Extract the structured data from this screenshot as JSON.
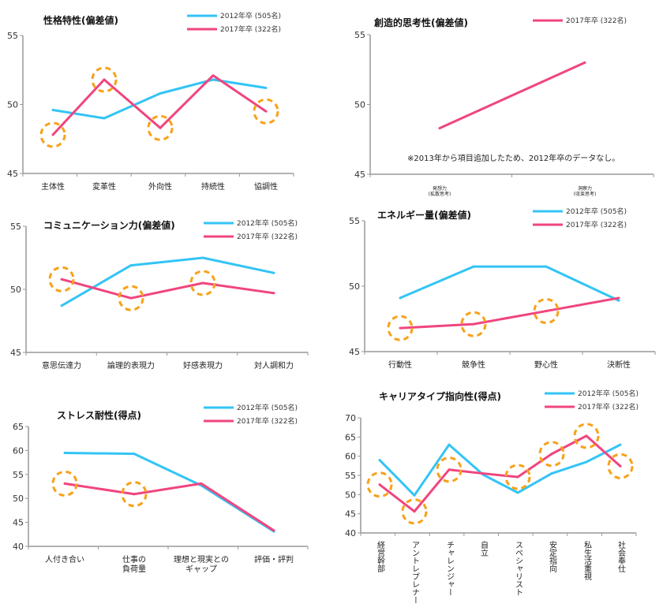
{
  "colors": {
    "s2012": "#33c4f5",
    "s2017": "#f0457f",
    "highlight": "#f7a21b",
    "axis": "#999999"
  },
  "legend": {
    "s2012": "2012年卒 (505名)",
    "s2017": "2017年卒 (322名)"
  },
  "chart_data": [
    {
      "type": "line",
      "title": "性格特性(偏差値)",
      "categories": [
        "主体性",
        "変革性",
        "外向性",
        "持続性",
        "協調性"
      ],
      "ylim": [
        45,
        55
      ],
      "yticks": [
        45,
        50,
        55
      ],
      "series": [
        {
          "name": "2012年卒 (505名)",
          "values": [
            49.6,
            49.0,
            50.8,
            51.8,
            51.2
          ]
        },
        {
          "name": "2017年卒 (322名)",
          "values": [
            47.8,
            51.8,
            48.3,
            52.1,
            49.5
          ],
          "highlighted": [
            0,
            1,
            2,
            4
          ]
        }
      ]
    },
    {
      "type": "line",
      "title": "創造的思考性(偏差値)",
      "categories": [
        "発想力\n(拡散思考)",
        "洞察力\n(収束思考)"
      ],
      "ylim": [
        45,
        55
      ],
      "yticks": [
        45,
        50,
        55
      ],
      "note": "※2013年から項目追加したため、2012年卒のデータなし。",
      "series": [
        {
          "name": "2017年卒 (322名)",
          "values": [
            48.3,
            53.0
          ],
          "highlighted": []
        }
      ]
    },
    {
      "type": "line",
      "title": "コミュニケーション力(偏差値)",
      "categories": [
        "意思伝達力",
        "論理的表現力",
        "好感表現力",
        "対人調和力"
      ],
      "ylim": [
        45,
        55
      ],
      "yticks": [
        45,
        50,
        55
      ],
      "series": [
        {
          "name": "2012年卒 (505名)",
          "values": [
            48.7,
            51.9,
            52.5,
            51.3
          ]
        },
        {
          "name": "2017年卒 (322名)",
          "values": [
            50.8,
            49.3,
            50.5,
            49.7
          ],
          "highlighted": [
            0,
            1,
            2
          ]
        }
      ]
    },
    {
      "type": "line",
      "title": "エネルギー量(偏差値)",
      "categories": [
        "行動性",
        "競争性",
        "野心性",
        "決断性"
      ],
      "ylim": [
        45,
        55
      ],
      "yticks": [
        45,
        50,
        55
      ],
      "series": [
        {
          "name": "2012年卒 (505名)",
          "values": [
            49.1,
            51.5,
            51.5,
            48.9
          ]
        },
        {
          "name": "2017年卒 (322名)",
          "values": [
            46.8,
            47.1,
            48.1,
            49.1
          ],
          "highlighted": [
            0,
            1,
            2
          ]
        }
      ]
    },
    {
      "type": "line",
      "title": "ストレス耐性(得点)",
      "categories": [
        "人付き合い",
        "仕事の\n負荷量",
        "理想と現実との\nギャップ",
        "評価・評判"
      ],
      "ylim": [
        40,
        65
      ],
      "yticks": [
        40,
        45,
        50,
        55,
        60,
        65
      ],
      "series": [
        {
          "name": "2012年卒 (505名)",
          "values": [
            59.5,
            59.3,
            52.7,
            43.1
          ]
        },
        {
          "name": "2017年卒 (322名)",
          "values": [
            53.1,
            50.9,
            53.1,
            43.3
          ],
          "highlighted": [
            0,
            1
          ]
        }
      ]
    },
    {
      "type": "line",
      "title": "キャリアタイプ指向性(得点)",
      "categories": [
        "経営幹部",
        "アントレプレナー",
        "チャレンジャー",
        "自立",
        "スペシャリスト",
        "安定指向",
        "私生活重視",
        "社会奉仕"
      ],
      "ylim": [
        40,
        70
      ],
      "yticks": [
        40,
        45,
        50,
        55,
        60,
        65,
        70
      ],
      "vertical_labels": true,
      "series": [
        {
          "name": "2012年卒 (505名)",
          "values": [
            59.0,
            49.8,
            63.0,
            55.2,
            50.5,
            55.5,
            58.5,
            63.0
          ]
        },
        {
          "name": "2017年卒 (322名)",
          "values": [
            52.6,
            45.6,
            56.5,
            55.5,
            54.6,
            60.6,
            65.3,
            57.4
          ],
          "highlighted": [
            0,
            1,
            2,
            4,
            5,
            6,
            7
          ]
        }
      ]
    }
  ]
}
